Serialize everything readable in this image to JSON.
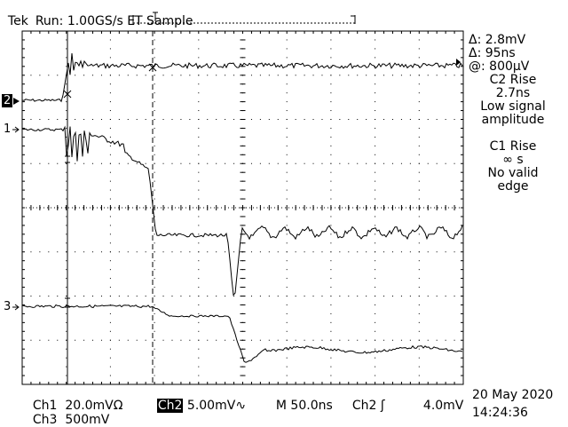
{
  "status": {
    "brand": "Tek",
    "run_state": "Run: 1.00GS/s",
    "mode": "ET Sample"
  },
  "measurements": {
    "cursor_dv": "Δ: 2.8mV",
    "cursor_dt": "Δ: 95ns",
    "cursor_at": "@: 800μV",
    "c2_title": "C2 Rise",
    "c2_value": "2.7ns",
    "c2_note1": "Low signal",
    "c2_note2": "amplitude",
    "c1_title": "C1 Rise",
    "c1_value": "∞ s",
    "c1_note1": "No valid",
    "c1_note2": "edge"
  },
  "channels": {
    "ch2_marker": "2",
    "ch1_marker": "1",
    "ch3_marker": "3"
  },
  "settings": {
    "ch1_label": "Ch1",
    "ch1_scale": "20.0mVΩ",
    "ch2_label": "Ch2",
    "ch2_scale": "5.00mV",
    "ch2_bw": "∿",
    "timebase": "M 50.0ns",
    "trigger_src": "Ch2",
    "trigger_slope": "ʃ",
    "trigger_level": "4.0mV",
    "ch3_label": "Ch3",
    "ch3_scale": "500mV"
  },
  "datetime": {
    "date": "20 May 2020",
    "time": "14:24:36"
  },
  "colors": {
    "background": "#ffffff",
    "foreground": "#000000"
  }
}
